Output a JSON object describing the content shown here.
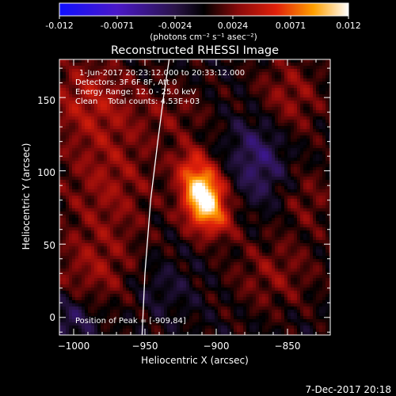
{
  "colorbar": {
    "ticks": [
      "-0.012",
      "-0.0071",
      "-0.0024",
      "0.0024",
      "0.0071",
      "0.012"
    ],
    "units": "(photons cm⁻² s⁻¹ asec⁻²)"
  },
  "plot": {
    "title": "Reconstructed RHESSI Image",
    "annotations": [
      "1-Jun-2017 20:23:12.000 to 20:33:12.000",
      "Detectors: 3F 6F 8F, Att 0",
      "Energy Range: 12.0 - 25.0 keV",
      "Clean    Total counts: 4.53E+03"
    ],
    "peak_label": "Position of Peak = [-909,84]"
  },
  "footer": {
    "timestamp": "7-Dec-2017 20:18"
  },
  "chart_data": {
    "type": "heatmap",
    "title": "Reconstructed RHESSI Image",
    "xlabel": "Heliocentric X (arcsec)",
    "ylabel": "Heliocentric Y (arcsec)",
    "xlim": [
      -1010,
      -820
    ],
    "ylim": [
      -12,
      176
    ],
    "xticks": [
      -1000,
      -950,
      -900,
      -850
    ],
    "xtick_labels": [
      "−1000",
      "−950",
      "−900",
      "−850"
    ],
    "yticks": [
      0,
      50,
      100,
      150
    ],
    "ytick_labels": [
      "0",
      "50",
      "100",
      "150"
    ],
    "colorbar_range": [
      -0.012,
      0.012
    ],
    "colormap": "blue-purple-black-red-yellow-white",
    "peak": {
      "x": -909,
      "y": 84,
      "value": 0.012
    },
    "limb_curve": {
      "x": [
        -952,
        -950,
        -946,
        -941,
        -937,
        -933
      ],
      "y": [
        -12,
        30,
        80,
        120,
        150,
        176
      ]
    },
    "blobs": [
      {
        "x": -909,
        "y": 84,
        "sx": 10,
        "sy": 12,
        "v": 0.012
      },
      {
        "x": -902,
        "y": 66,
        "sx": 12,
        "sy": 10,
        "v": 0.0045
      },
      {
        "x": -918,
        "y": 104,
        "sx": 9,
        "sy": 10,
        "v": 0.004
      },
      {
        "x": -990,
        "y": 150,
        "sx": 22,
        "sy": 20,
        "v": 0.0035
      },
      {
        "x": -975,
        "y": 95,
        "sx": 25,
        "sy": 30,
        "v": 0.003
      },
      {
        "x": -985,
        "y": 30,
        "sx": 22,
        "sy": 22,
        "v": 0.0028
      },
      {
        "x": -850,
        "y": 150,
        "sx": 18,
        "sy": 20,
        "v": 0.003
      },
      {
        "x": -860,
        "y": 30,
        "sx": 22,
        "sy": 18,
        "v": 0.0025
      },
      {
        "x": -835,
        "y": 80,
        "sx": 14,
        "sy": 16,
        "v": 0.002
      },
      {
        "x": -930,
        "y": 140,
        "sx": 18,
        "sy": 15,
        "v": 0.0018
      },
      {
        "x": -870,
        "y": 110,
        "sx": 14,
        "sy": 22,
        "v": -0.0035
      },
      {
        "x": -1000,
        "y": 0,
        "sx": 14,
        "sy": 12,
        "v": -0.003
      },
      {
        "x": -940,
        "y": 20,
        "sx": 18,
        "sy": 14,
        "v": -0.0015
      }
    ]
  }
}
